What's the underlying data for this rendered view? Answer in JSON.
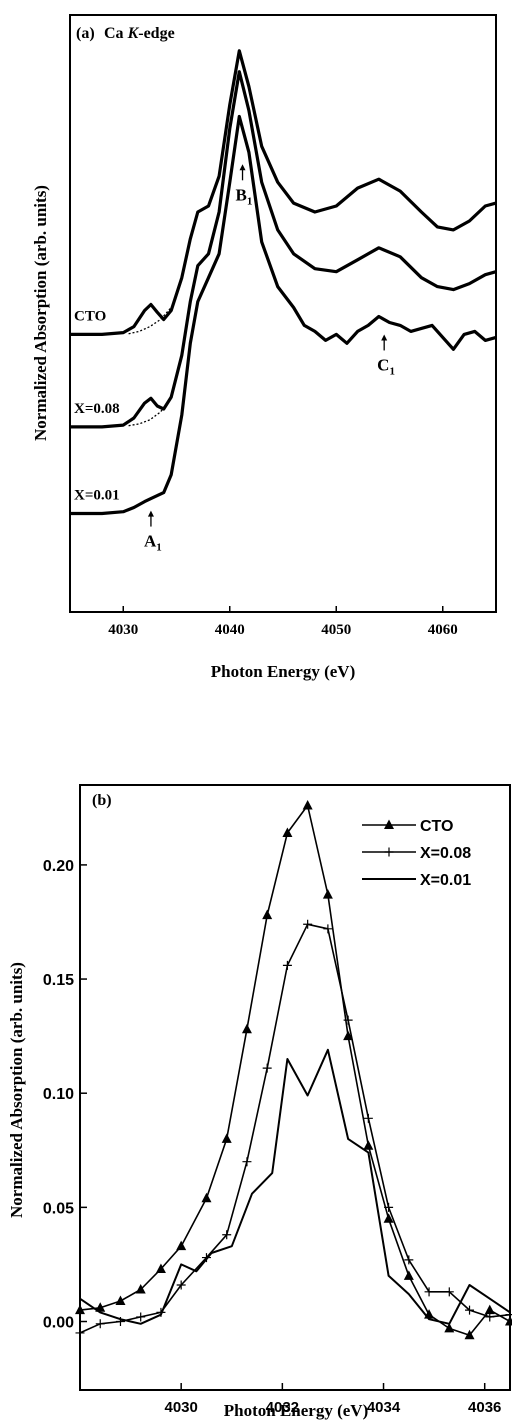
{
  "chart_data": [
    {
      "type": "line",
      "panel_label": "(a)",
      "title": "Ca K-edge",
      "title_prefix": "Ca ",
      "title_italic": "K",
      "title_suffix": "-edge",
      "xlabel": "Photon Energy (eV)",
      "ylabel": "Normalized Absorption (arb. units)",
      "xlim": [
        4025,
        4065
      ],
      "ylim": [
        0,
        1
      ],
      "x_ticks": [
        4030,
        4040,
        4050,
        4060
      ],
      "y_ticks_shown": false,
      "grid": false,
      "series": [
        {
          "name": "CTO",
          "x": [
            4025,
            4028,
            4030,
            4031,
            4032,
            4032.6,
            4033.2,
            4033.8,
            4034.5,
            4035.5,
            4036.3,
            4037,
            4038,
            4039,
            4040,
            4040.9,
            4041.8,
            4043,
            4044.5,
            4046,
            4048,
            4050,
            4052,
            4054,
            4056,
            4058,
            4059.5,
            4061,
            4062.5,
            4064,
            4065
          ],
          "y": [
            0.465,
            0.465,
            0.468,
            0.478,
            0.505,
            0.515,
            0.502,
            0.49,
            0.505,
            0.56,
            0.625,
            0.67,
            0.68,
            0.73,
            0.85,
            0.94,
            0.88,
            0.78,
            0.72,
            0.685,
            0.67,
            0.68,
            0.71,
            0.725,
            0.705,
            0.67,
            0.645,
            0.64,
            0.655,
            0.68,
            0.685
          ],
          "baseline_dotted": {
            "x": [
              4030.5,
              4031.5,
              4032.5,
              4033.5,
              4034.5
            ],
            "y": [
              0.466,
              0.47,
              0.478,
              0.49,
              0.51
            ]
          }
        },
        {
          "name": "X=0.08",
          "x": [
            4025,
            4028,
            4030,
            4031,
            4032,
            4032.6,
            4033.2,
            4033.8,
            4034.5,
            4035.5,
            4036.3,
            4037,
            4038,
            4039,
            4040,
            4040.9,
            4041.8,
            4043,
            4044.5,
            4046,
            4048,
            4050,
            4052,
            4054,
            4056,
            4058,
            4059.5,
            4061,
            4062.5,
            4064,
            4065
          ],
          "y": [
            0.31,
            0.31,
            0.313,
            0.325,
            0.35,
            0.358,
            0.345,
            0.34,
            0.36,
            0.43,
            0.52,
            0.58,
            0.6,
            0.67,
            0.81,
            0.905,
            0.84,
            0.72,
            0.64,
            0.6,
            0.575,
            0.57,
            0.59,
            0.61,
            0.595,
            0.56,
            0.545,
            0.54,
            0.55,
            0.565,
            0.57
          ],
          "baseline_dotted": {
            "x": [
              4030.5,
              4031.5,
              4032.5,
              4033.5,
              4034.5
            ],
            "y": [
              0.312,
              0.315,
              0.322,
              0.335,
              0.36
            ]
          }
        },
        {
          "name": "X=0.01",
          "x": [
            4025,
            4028,
            4030,
            4031,
            4032,
            4032.6,
            4033.2,
            4033.8,
            4034.5,
            4035.5,
            4036.3,
            4037,
            4038,
            4039,
            4040,
            4040.9,
            4041.8,
            4043,
            4044.5,
            4046,
            4047,
            4048,
            4049,
            4050,
            4051,
            4052,
            4053,
            4054,
            4055,
            4056,
            4057,
            4058,
            4059,
            4060,
            4061,
            4062,
            4063,
            4064,
            4065
          ],
          "y": [
            0.165,
            0.165,
            0.168,
            0.175,
            0.185,
            0.19,
            0.195,
            0.2,
            0.23,
            0.33,
            0.45,
            0.52,
            0.56,
            0.6,
            0.72,
            0.83,
            0.77,
            0.62,
            0.545,
            0.51,
            0.48,
            0.47,
            0.455,
            0.465,
            0.45,
            0.47,
            0.48,
            0.495,
            0.485,
            0.48,
            0.47,
            0.475,
            0.48,
            0.46,
            0.44,
            0.465,
            0.47,
            0.455,
            0.46
          ]
        }
      ],
      "series_labels": [
        {
          "text": "CTO",
          "series": 0
        },
        {
          "text": "X=0.08",
          "series": 1
        },
        {
          "text": "X=0.01",
          "series": 2
        }
      ],
      "annotations": [
        {
          "letter": "A",
          "subscript": "1",
          "x": 4032.6
        },
        {
          "letter": "B",
          "subscript": "1",
          "x": 4041.2
        },
        {
          "letter": "C",
          "subscript": "1",
          "x": 4054.5
        }
      ]
    },
    {
      "type": "line",
      "panel_label": "(b)",
      "xlabel": "Photon Energy (eV)",
      "ylabel": "Normalized Absorption (arb. units)",
      "xlim": [
        4028,
        4036.5
      ],
      "ylim": [
        -0.03,
        0.235
      ],
      "x_ticks": [
        4030,
        4032,
        4034,
        4036
      ],
      "y_ticks": [
        0.0,
        0.05,
        0.1,
        0.15,
        0.2
      ],
      "y_tick_labels": [
        "0.00",
        "0.05",
        "0.10",
        "0.15",
        "0.20"
      ],
      "grid": false,
      "legend": "top-right",
      "series": [
        {
          "name": "CTO",
          "marker": "triangle",
          "x": [
            4028.0,
            4028.4,
            4028.8,
            4029.2,
            4029.6,
            4030.0,
            4030.5,
            4030.9,
            4031.3,
            4031.7,
            4032.1,
            4032.5,
            4032.9,
            4033.3,
            4033.7,
            4034.1,
            4034.5,
            4034.9,
            4035.3,
            4035.7,
            4036.1,
            4036.5
          ],
          "y": [
            0.005,
            0.006,
            0.009,
            0.014,
            0.023,
            0.033,
            0.054,
            0.08,
            0.128,
            0.178,
            0.214,
            0.226,
            0.187,
            0.125,
            0.077,
            0.045,
            0.02,
            0.003,
            -0.003,
            -0.006,
            0.005,
            0.0
          ]
        },
        {
          "name": "X=0.08",
          "marker": "plus",
          "x": [
            4028.0,
            4028.4,
            4028.8,
            4029.2,
            4029.6,
            4030.0,
            4030.5,
            4030.9,
            4031.3,
            4031.7,
            4032.1,
            4032.5,
            4032.9,
            4033.3,
            4033.7,
            4034.1,
            4034.5,
            4034.9,
            4035.3,
            4035.7,
            4036.1,
            4036.5
          ],
          "y": [
            -0.005,
            -0.001,
            0.0,
            0.002,
            0.004,
            0.016,
            0.028,
            0.038,
            0.07,
            0.111,
            0.156,
            0.174,
            0.172,
            0.132,
            0.089,
            0.05,
            0.027,
            0.013,
            0.013,
            0.005,
            0.002,
            0.003
          ]
        },
        {
          "name": "X=0.01",
          "marker": "none",
          "x": [
            4028.0,
            4028.4,
            4028.8,
            4029.2,
            4029.6,
            4030.0,
            4030.3,
            4030.6,
            4031.0,
            4031.4,
            4031.8,
            4032.1,
            4032.5,
            4032.9,
            4033.3,
            4033.7,
            4034.1,
            4034.5,
            4034.9,
            4035.3,
            4035.7,
            4036.1,
            4036.5
          ],
          "y": [
            0.01,
            0.004,
            0.001,
            -0.001,
            0.003,
            0.025,
            0.022,
            0.03,
            0.033,
            0.056,
            0.065,
            0.115,
            0.099,
            0.119,
            0.08,
            0.074,
            0.02,
            0.012,
            0.001,
            -0.001,
            0.016,
            0.01,
            0.004
          ]
        }
      ]
    }
  ]
}
